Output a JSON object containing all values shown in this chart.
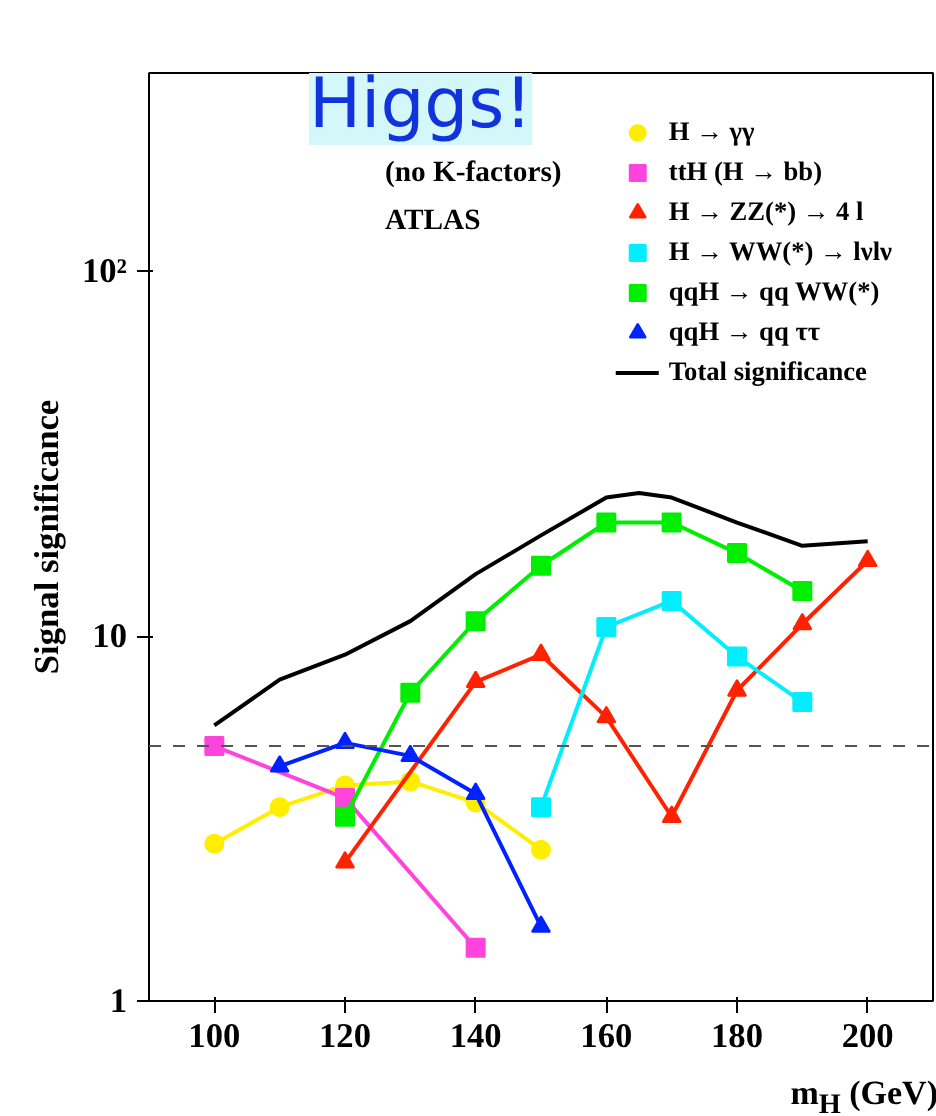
{
  "chart_data": {
    "type": "line",
    "xlabel": "m$_{H}$ (GeV)",
    "ylabel": "Signal significance",
    "log": "y",
    "xlim": [
      90,
      210
    ],
    "ylim": [
      1,
      350
    ],
    "xticks": [
      100,
      120,
      140,
      160,
      180,
      200
    ],
    "yticks": [
      1,
      10,
      {
        "value": 100,
        "label": "10²"
      }
    ],
    "grid": false,
    "legend": "top right",
    "line_style": "solid",
    "annotations": [
      "Higgs!",
      "(no K-factors)",
      "ATLAS"
    ],
    "ref_lines": [
      {
        "axis": "y",
        "value": 5,
        "label": null,
        "line_style": "dashed",
        "color": "#555555"
      }
    ],
    "series": [
      {
        "name": "H → γγ",
        "color": "#ffee00",
        "marker": "circle",
        "x": [
          100,
          110,
          120,
          130,
          140,
          150
        ],
        "values": [
          2.7,
          3.4,
          3.9,
          4.0,
          3.5,
          2.6
        ]
      },
      {
        "name": "ttH (H → bb)",
        "color": "#ff44dd",
        "marker": "square",
        "x": [
          100,
          120,
          140
        ],
        "values": [
          5.0,
          3.6,
          1.4
        ]
      },
      {
        "name": "H → ZZ(*) → 4 l",
        "color": "#ff2200",
        "marker": "triangle",
        "x": [
          120,
          140,
          150,
          160,
          170,
          180,
          190,
          200
        ],
        "values": [
          2.4,
          7.5,
          8.9,
          6.0,
          3.2,
          7.1,
          10.8,
          16.1
        ]
      },
      {
        "name": "H → WW(*) → lνlν",
        "color": "#00eeff",
        "marker": "square",
        "x": [
          150,
          160,
          170,
          180,
          190
        ],
        "values": [
          3.4,
          10.6,
          12.5,
          8.8,
          6.6
        ]
      },
      {
        "name": "qqH → qq WW(*)",
        "color": "#00ee00",
        "marker": "square",
        "x": [
          120,
          130,
          140,
          150,
          160,
          170,
          180,
          190
        ],
        "values": [
          3.2,
          7.0,
          11.0,
          15.6,
          20.5,
          20.5,
          16.9,
          13.3
        ]
      },
      {
        "name": "qqH → qq ττ",
        "color": "#0022ff",
        "marker": "triangle",
        "x": [
          110,
          120,
          130,
          140,
          150
        ],
        "values": [
          4.4,
          5.1,
          4.7,
          3.7,
          1.6
        ]
      },
      {
        "name": "Total significance",
        "color": "#000000",
        "marker": "none",
        "x": [
          100,
          110,
          120,
          130,
          140,
          150,
          160,
          165,
          170,
          180,
          190,
          200
        ],
        "values": [
          5.7,
          7.6,
          8.9,
          11.0,
          14.8,
          18.9,
          24.0,
          24.7,
          24.0,
          20.5,
          17.7,
          18.2
        ]
      }
    ]
  }
}
